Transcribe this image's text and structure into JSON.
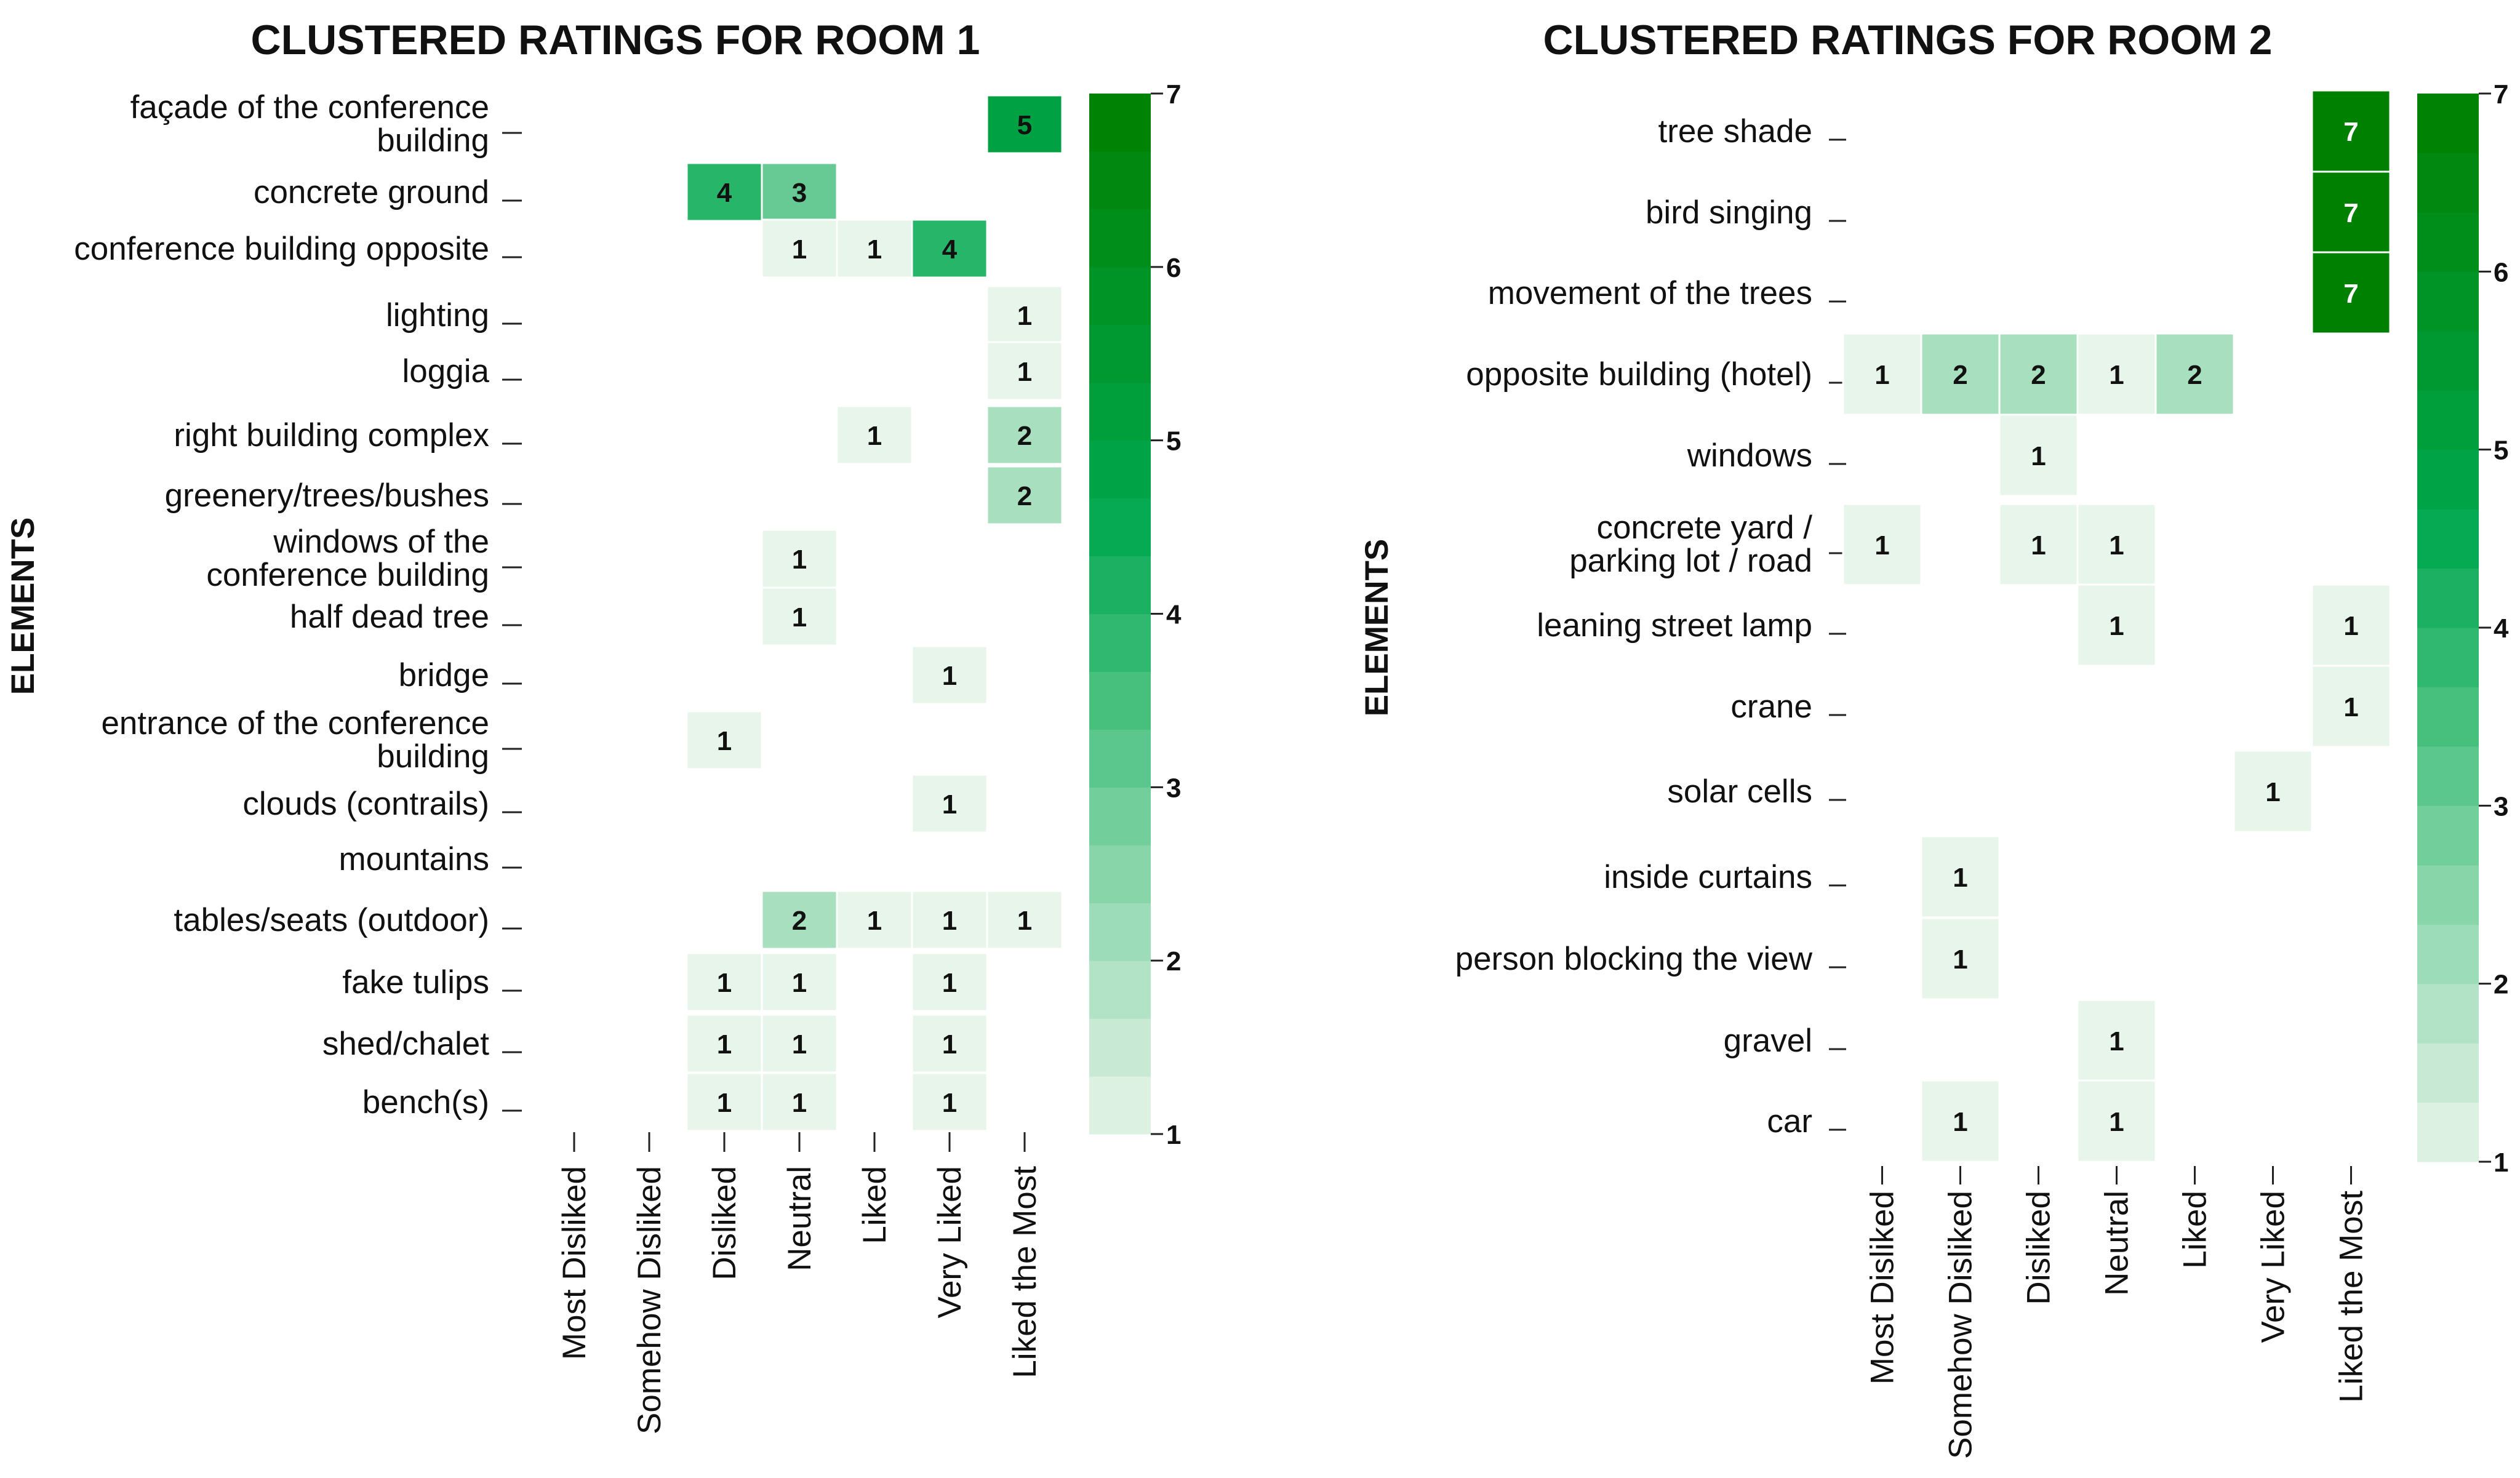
{
  "chart_data": [
    {
      "type": "heatmap",
      "title": "CLUSTERED RATINGS FOR ROOM 1",
      "ylabel": "ELEMENTS",
      "xlabel": "",
      "x_categories": [
        "Most Disliked",
        "Somehow Disliked",
        "Disliked",
        "Neutral",
        "Liked",
        "Very Liked",
        "Liked the Most"
      ],
      "y_categories": [
        "façade of the conference building",
        "concrete ground",
        "conference building opposite",
        "lighting",
        "loggia",
        "right building complex",
        "greenery/trees/bushes",
        "windows of the conference building",
        "half dead tree",
        "bridge",
        "entrance of the conference building",
        "clouds (contrails)",
        "mountains",
        "tables/seats (outdoor)",
        "fake tulips",
        "shed/chalet",
        "bench(s)"
      ],
      "values": [
        [
          null,
          null,
          null,
          null,
          null,
          null,
          5
        ],
        [
          null,
          null,
          4,
          3,
          null,
          null,
          null
        ],
        [
          null,
          null,
          null,
          1,
          1,
          4,
          null
        ],
        [
          null,
          null,
          null,
          null,
          null,
          null,
          1
        ],
        [
          null,
          null,
          null,
          null,
          null,
          null,
          1
        ],
        [
          null,
          null,
          null,
          null,
          1,
          null,
          2
        ],
        [
          null,
          null,
          null,
          null,
          null,
          null,
          2
        ],
        [
          null,
          null,
          null,
          1,
          null,
          null,
          null
        ],
        [
          null,
          null,
          null,
          1,
          null,
          null,
          null
        ],
        [
          null,
          null,
          null,
          null,
          null,
          1,
          null
        ],
        [
          null,
          null,
          1,
          null,
          null,
          null,
          null
        ],
        [
          null,
          null,
          null,
          null,
          null,
          1,
          null
        ],
        [
          null,
          null,
          null,
          null,
          null,
          null,
          null
        ],
        [
          null,
          null,
          null,
          2,
          1,
          1,
          1
        ],
        [
          null,
          null,
          1,
          1,
          null,
          1,
          null
        ],
        [
          null,
          null,
          1,
          1,
          null,
          1,
          null
        ],
        [
          null,
          null,
          1,
          1,
          null,
          1,
          null
        ]
      ],
      "colorbar": {
        "min": 1,
        "max": 7,
        "ticks": [
          "1",
          "2",
          "3",
          "4",
          "5",
          "6",
          "7"
        ]
      },
      "colors": {
        "low": "#e8f5ea",
        "high": "#008000"
      }
    },
    {
      "type": "heatmap",
      "title": "CLUSTERED RATINGS FOR ROOM 2",
      "ylabel": "ELEMENTS",
      "xlabel": "",
      "x_categories": [
        "Most Disliked",
        "Somehow Disliked",
        "Disliked",
        "Neutral",
        "Liked",
        "Very Liked",
        "Liked the Most"
      ],
      "y_categories": [
        "tree shade",
        "bird singing",
        "movement of the trees",
        "opposite building (hotel)",
        "windows",
        "concrete yard / parking lot / road",
        "leaning street lamp",
        "crane",
        "solar cells",
        "inside curtains",
        "person blocking the view",
        "gravel",
        "car"
      ],
      "values": [
        [
          null,
          null,
          null,
          null,
          null,
          null,
          7
        ],
        [
          null,
          null,
          null,
          null,
          null,
          null,
          7
        ],
        [
          null,
          null,
          null,
          null,
          null,
          null,
          7
        ],
        [
          1,
          2,
          2,
          1,
          2,
          null,
          null
        ],
        [
          null,
          null,
          1,
          null,
          null,
          null,
          null
        ],
        [
          1,
          null,
          1,
          1,
          null,
          null,
          null
        ],
        [
          null,
          null,
          null,
          1,
          null,
          null,
          1
        ],
        [
          null,
          null,
          null,
          null,
          null,
          null,
          1
        ],
        [
          null,
          null,
          null,
          null,
          null,
          1,
          null
        ],
        [
          null,
          1,
          null,
          null,
          null,
          null,
          null
        ],
        [
          null,
          1,
          null,
          null,
          null,
          null,
          null
        ],
        [
          null,
          null,
          null,
          1,
          null,
          null,
          null
        ],
        [
          null,
          1,
          null,
          1,
          null,
          null,
          null
        ]
      ],
      "colorbar": {
        "min": 1,
        "max": 7,
        "ticks": [
          "1",
          "2",
          "3",
          "4",
          "5",
          "6",
          "7"
        ]
      },
      "colors": {
        "low": "#e8f5ea",
        "high": "#008000"
      }
    }
  ]
}
